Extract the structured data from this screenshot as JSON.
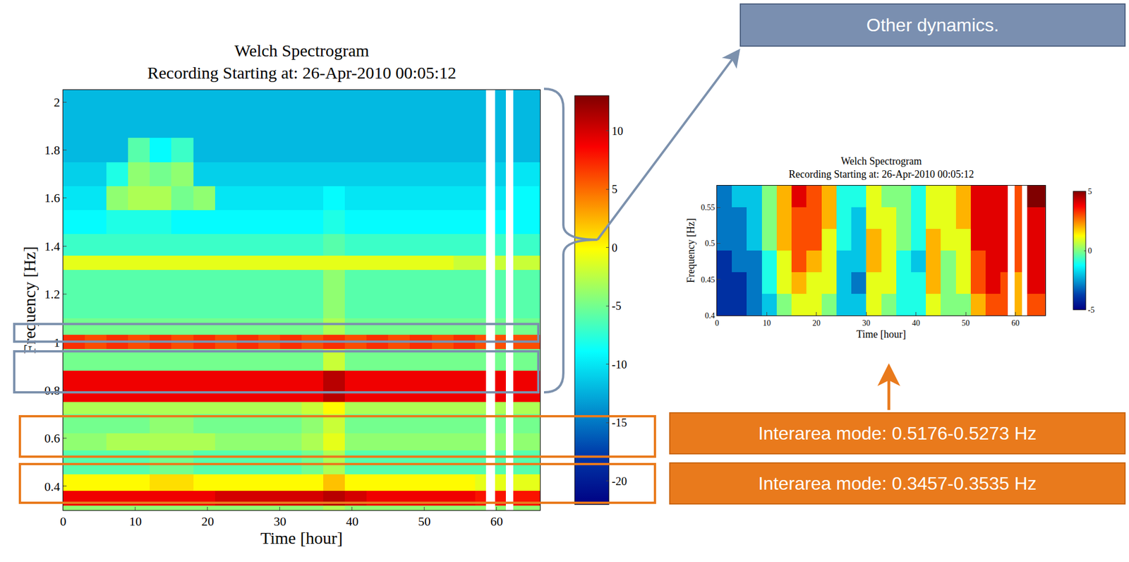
{
  "chart_data": [
    {
      "type": "heatmap",
      "title": [
        "Welch Spectrogram",
        "Recording Starting at: 26-Apr-2010 00:05:12"
      ],
      "x_label": "Time [hour]",
      "y_label": "Frequency [Hz]",
      "x": [
        0,
        3,
        6,
        9,
        12,
        15,
        18,
        21,
        24,
        27,
        30,
        33,
        36,
        39,
        42,
        45,
        48,
        51,
        54,
        57,
        58.5,
        59.8,
        61.3,
        62.3,
        66
      ],
      "y": [
        0.3,
        0.32,
        0.38,
        0.45,
        0.55,
        0.62,
        0.7,
        0.75,
        0.88,
        0.97,
        1.03,
        1.1,
        1.3,
        1.36,
        1.45,
        1.55,
        1.65,
        1.75,
        1.85,
        1.95,
        2.05
      ],
      "z": [
        [
          -4,
          -4,
          -4,
          -4,
          -4,
          -4,
          -4,
          -4,
          -4,
          -4,
          -4,
          -4,
          -3,
          -4,
          -4,
          -4,
          -4,
          -4,
          -4,
          -4,
          null,
          -4,
          null,
          -4
        ],
        [
          9,
          9,
          9,
          9,
          9,
          9,
          9,
          10,
          10,
          10,
          10,
          10,
          11,
          10,
          9,
          9,
          9,
          9,
          9,
          8,
          null,
          8,
          null,
          8
        ],
        [
          0,
          0,
          0,
          0,
          1,
          1,
          0,
          0,
          0,
          0,
          0,
          0,
          2,
          0,
          0,
          0,
          0,
          0,
          0,
          -1,
          null,
          -1,
          null,
          -1
        ],
        [
          -6,
          -6,
          -6,
          -6,
          -5,
          -5,
          -6,
          -6,
          -6,
          -6,
          -6,
          -5,
          -3,
          -6,
          -6,
          -6,
          -6,
          -6,
          -6,
          -6,
          null,
          -6,
          null,
          -6
        ],
        [
          -4,
          -4,
          -3,
          -3,
          -3,
          -3,
          -3,
          -4,
          -4,
          -4,
          -4,
          -3,
          -1,
          -4,
          -4,
          -4,
          -4,
          -4,
          -4,
          -4,
          null,
          -4,
          null,
          -4
        ],
        [
          -5,
          -5,
          -5,
          -5,
          -4,
          -4,
          -5,
          -5,
          -5,
          -5,
          -5,
          -4,
          -2,
          -5,
          -5,
          -5,
          -5,
          -5,
          -5,
          -5,
          null,
          -5,
          null,
          -5
        ],
        [
          -3,
          -3,
          -3,
          -3,
          -3,
          -3,
          -3,
          -3,
          -3,
          -3,
          -3,
          -2,
          0,
          -3,
          -3,
          -3,
          -3,
          -3,
          -3,
          -3,
          null,
          -3,
          null,
          -3
        ],
        [
          9,
          9,
          9,
          9,
          9,
          9,
          9,
          9,
          9,
          9,
          9,
          9,
          11,
          9,
          9,
          9,
          9,
          9,
          9,
          9,
          null,
          9,
          null,
          9
        ],
        [
          -5,
          -5,
          -5,
          -5,
          -5,
          -5,
          -5,
          -5,
          -5,
          -5,
          -5,
          -5,
          -2,
          -5,
          -5,
          -5,
          -5,
          -5,
          -5,
          -5,
          null,
          -5,
          null,
          -5
        ],
        [
          7,
          6,
          7,
          6,
          7,
          6,
          7,
          6,
          7,
          6,
          7,
          6,
          7,
          6,
          7,
          6,
          7,
          6,
          7,
          6,
          null,
          6,
          null,
          6
        ],
        [
          -5,
          -5,
          -5,
          -5,
          -5,
          -5,
          -5,
          -5,
          -5,
          -5,
          -5,
          -5,
          -3,
          -5,
          -5,
          -5,
          -5,
          -5,
          -5,
          -5,
          null,
          -5,
          null,
          -5
        ],
        [
          -6,
          -6,
          -6,
          -6,
          -6,
          -6,
          -6,
          -6,
          -6,
          -6,
          -6,
          -6,
          -4,
          -6,
          -6,
          -6,
          -6,
          -6,
          -6,
          -6,
          null,
          -6,
          null,
          -6
        ],
        [
          -1,
          -1,
          -1,
          -1,
          -1,
          -1,
          -1,
          -1,
          -1,
          -1,
          -1,
          -1,
          -1,
          -1,
          -1,
          -1,
          -1,
          -1,
          -2,
          -2,
          null,
          -2,
          null,
          -2
        ],
        [
          -7,
          -7,
          -7,
          -7,
          -7,
          -7,
          -7,
          -7,
          -7,
          -7,
          -7,
          -7,
          -6,
          -7,
          -7,
          -7,
          -7,
          -7,
          -7,
          -7,
          null,
          -7,
          null,
          -7
        ],
        [
          -9,
          -9,
          -8,
          -8,
          -8,
          -9,
          -9,
          -9,
          -9,
          -9,
          -9,
          -9,
          -8,
          -9,
          -9,
          -9,
          -9,
          -9,
          -9,
          -9,
          null,
          -9,
          null,
          -9
        ],
        [
          -10,
          -10,
          -4,
          -3,
          -3,
          -5,
          -4,
          -10,
          -10,
          -10,
          -10,
          -10,
          -9,
          -10,
          -10,
          -10,
          -10,
          -10,
          -10,
          -10,
          null,
          -10,
          null,
          -9
        ],
        [
          -11,
          -11,
          -8,
          -4,
          -5,
          -4,
          -11,
          -11,
          -11,
          -11,
          -11,
          -11,
          -11,
          -11,
          -11,
          -11,
          -11,
          -11,
          -11,
          -11,
          null,
          -11,
          null,
          -10
        ],
        [
          -12,
          -12,
          -12,
          -6,
          -9,
          -7,
          -12,
          -12,
          -12,
          -12,
          -12,
          -12,
          -12,
          -12,
          -12,
          -12,
          -12,
          -12,
          -12,
          -12,
          null,
          -12,
          null,
          -12
        ],
        [
          -12,
          -12,
          -12,
          -12,
          -12,
          -12,
          -12,
          -12,
          -12,
          -12,
          -12,
          -12,
          -12,
          -12,
          -12,
          -12,
          -12,
          -12,
          -12,
          -12,
          null,
          -12,
          null,
          -12
        ],
        [
          -12,
          -12,
          -12,
          -12,
          -12,
          -12,
          -12,
          -12,
          -12,
          -12,
          -12,
          -12,
          -12,
          -12,
          -12,
          -12,
          -12,
          -12,
          -12,
          -12,
          null,
          -12,
          null,
          -12
        ]
      ],
      "xlim": [
        0,
        66
      ],
      "ylim": [
        0.3,
        2.05
      ],
      "xticks": [
        0,
        10,
        20,
        30,
        40,
        50,
        60
      ],
      "yticks": [
        0.4,
        0.6,
        0.8,
        1,
        1.2,
        1.4,
        1.6,
        1.8,
        2
      ],
      "zlim": [
        -22,
        13
      ],
      "zticks": [
        -20,
        -15,
        -10,
        -5,
        0,
        5,
        10
      ],
      "color": "jet",
      "grid": false,
      "annotations": [
        "Other dynamics.",
        "Interarea mode: 0.5176-0.5273 Hz",
        "Interarea mode: 0.3457-0.3535 Hz"
      ]
    },
    {
      "type": "heatmap",
      "title": [
        "Welch Spectrogram",
        "Recording Starting at: 26-Apr-2010 00:05:12"
      ],
      "x_label": "Time [hour]",
      "y_label": "Frequency [Hz]",
      "x": [
        0,
        3,
        6,
        9,
        12,
        15,
        18,
        21,
        24,
        27,
        30,
        33,
        36,
        39,
        42,
        45,
        48,
        51,
        54,
        57,
        58.5,
        59.8,
        61.3,
        62.3,
        66
      ],
      "y": [
        0.4,
        0.43,
        0.46,
        0.49,
        0.52,
        0.55,
        0.58
      ],
      "z": [
        [
          -4,
          -4,
          -3,
          -2,
          0,
          1,
          1,
          0,
          -2,
          -2,
          1,
          0,
          -1,
          -1,
          1,
          0,
          0,
          2,
          3,
          3,
          null,
          2,
          null,
          3
        ],
        [
          -4,
          -4,
          -3,
          -1,
          1,
          2,
          1,
          1,
          -2,
          -3,
          1,
          1,
          -1,
          -1,
          2,
          0,
          1,
          3,
          4,
          3,
          null,
          2,
          null,
          4
        ],
        [
          -4,
          -3,
          -3,
          -1,
          1,
          3,
          2,
          1,
          -2,
          -2,
          2,
          1,
          -1,
          -2,
          2,
          0,
          1,
          3,
          4,
          4,
          null,
          3,
          null,
          4
        ],
        [
          -3,
          -3,
          -2,
          0,
          2,
          3,
          3,
          1,
          -1,
          -2,
          2,
          1,
          0,
          -1,
          2,
          1,
          1,
          4,
          4,
          4,
          null,
          3,
          null,
          4
        ],
        [
          -3,
          -3,
          -2,
          0,
          2,
          3,
          3,
          2,
          -1,
          -2,
          1,
          1,
          0,
          -1,
          1,
          1,
          2,
          4,
          4,
          4,
          null,
          3,
          null,
          4
        ],
        [
          -3,
          -2,
          -2,
          0,
          2,
          4,
          3,
          2,
          -1,
          -1,
          1,
          0,
          0,
          -1,
          1,
          1,
          2,
          4,
          4,
          4,
          null,
          3,
          null,
          5
        ]
      ],
      "xlim": [
        0,
        66
      ],
      "ylim": [
        0.4,
        0.58
      ],
      "xticks": [
        0,
        10,
        20,
        30,
        40,
        50,
        60
      ],
      "yticks": [
        0.4,
        0.45,
        0.5,
        0.55
      ],
      "zlim": [
        -5,
        5
      ],
      "zticks": [
        -5,
        0,
        5
      ],
      "color": "jet",
      "grid": false
    }
  ]
}
